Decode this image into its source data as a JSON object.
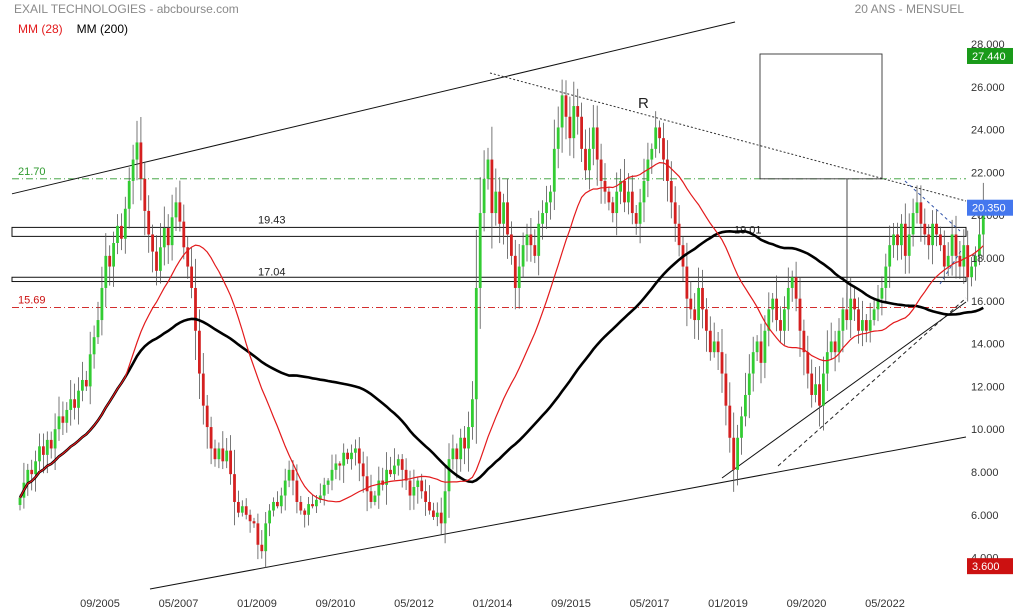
{
  "header": {
    "title": "EXAIL TECHNOLOGIES - abcbourse.com",
    "period": "20 ANS - MENSUEL"
  },
  "legend": [
    {
      "label": "MM (28)",
      "color": "#e31a1c"
    },
    {
      "label": "MM (200)",
      "color": "#000000"
    }
  ],
  "colors": {
    "up": "#33cc33",
    "down": "#d42020",
    "ma28": "#e31a1c",
    "ma200": "#000000",
    "last_badge": "#1a9a1a",
    "low_badge": "#cc1111",
    "green_level": "#2e9a2e",
    "red_level": "#cc1111"
  },
  "chart_data": {
    "type": "candlestick",
    "title": "EXAIL TECHNOLOGIES - abcbourse.com",
    "subtitle": "20 ANS - MENSUEL",
    "ylim": [
      3.0,
      28.6
    ],
    "y_ticks": [
      "28.000",
      "26.000",
      "24.000",
      "22.000",
      "20.000",
      "18.000",
      "16.000",
      "14.000",
      "12.000",
      "10.000",
      "8.000",
      "6.000",
      "4.000"
    ],
    "x_ticks": [
      "09/2005",
      "05/2007",
      "01/2009",
      "09/2010",
      "05/2012",
      "01/2014",
      "09/2015",
      "05/2017",
      "01/2019",
      "09/2020",
      "05/2022"
    ],
    "last_price": "20.350",
    "badges": [
      {
        "value": "27.440",
        "price": 27.44,
        "color": "green"
      },
      {
        "value": "3.600",
        "price": 3.6,
        "color": "red"
      }
    ],
    "levels": [
      {
        "value": 21.7,
        "label": "21.70",
        "style": "dashdot",
        "color": "green"
      },
      {
        "value": 15.69,
        "label": "15.69",
        "style": "dashdot",
        "color": "red"
      }
    ],
    "zones": [
      {
        "label": "19.43",
        "low": 19.01,
        "high": 19.43
      },
      {
        "label": "19.01",
        "low": 19.01,
        "high": 19.43
      },
      {
        "label": "17.04",
        "low": 16.9,
        "high": 17.1
      }
    ],
    "annotations": [
      "R"
    ],
    "closes": [
      6.8,
      7.5,
      8.1,
      7.9,
      8.5,
      9.2,
      8.8,
      9.5,
      9.1,
      10.0,
      10.6,
      10.3,
      10.9,
      11.4,
      11.0,
      11.8,
      12.3,
      12.0,
      13.5,
      14.3,
      15.1,
      16.6,
      18.1,
      17.6,
      18.7,
      19.5,
      18.9,
      20.3,
      21.6,
      22.6,
      23.4,
      21.7,
      20.2,
      19.1,
      18.3,
      17.4,
      18.5,
      19.4,
      18.6,
      19.9,
      20.6,
      19.7,
      18.5,
      17.6,
      16.6,
      14.6,
      12.6,
      11.1,
      10.1,
      9.1,
      8.6,
      9.1,
      8.5,
      9.0,
      7.9,
      6.6,
      6.1,
      6.4,
      6.0,
      5.7,
      5.6,
      4.6,
      4.3,
      5.6,
      6.2,
      6.6,
      6.4,
      6.9,
      7.6,
      8.1,
      7.6,
      6.6,
      6.2,
      6.0,
      6.5,
      6.4,
      6.7,
      6.9,
      7.4,
      7.6,
      8.1,
      8.4,
      8.3,
      8.9,
      8.6,
      8.9,
      9.1,
      8.4,
      7.8,
      7.1,
      6.6,
      6.9,
      7.6,
      7.4,
      8.1,
      7.9,
      8.3,
      8.6,
      8.1,
      7.6,
      6.9,
      7.3,
      7.6,
      7.1,
      6.6,
      6.2,
      5.9,
      6.1,
      5.6,
      7.1,
      8.6,
      9.1,
      8.6,
      9.6,
      9.1,
      10.1,
      11.4,
      16.6,
      20.1,
      21.7,
      22.6,
      20.1,
      21.1,
      19.6,
      20.6,
      19.1,
      18.1,
      16.6,
      17.6,
      18.6,
      19.1,
      18.6,
      18.1,
      19.6,
      20.1,
      20.6,
      21.1,
      23.1,
      24.1,
      25.6,
      24.6,
      23.6,
      25.1,
      24.6,
      23.1,
      22.1,
      23.1,
      24.1,
      22.6,
      21.6,
      21.1,
      20.6,
      20.1,
      21.1,
      21.6,
      20.6,
      21.1,
      20.1,
      19.6,
      20.6,
      21.6,
      22.6,
      23.1,
      24.1,
      23.6,
      22.6,
      21.6,
      20.6,
      19.6,
      18.6,
      17.6,
      16.1,
      15.6,
      15.1,
      16.6,
      15.6,
      14.6,
      13.6,
      14.1,
      13.6,
      12.6,
      11.1,
      9.6,
      8.1,
      9.6,
      10.6,
      11.6,
      12.6,
      13.6,
      14.1,
      13.1,
      14.6,
      15.6,
      16.1,
      15.1,
      14.6,
      15.6,
      16.6,
      17.1,
      16.1,
      14.6,
      13.6,
      12.6,
      11.6,
      12.1,
      11.1,
      12.6,
      13.6,
      14.1,
      13.6,
      14.6,
      15.6,
      15.1,
      16.1,
      15.6,
      14.6,
      15.1,
      14.6,
      15.1,
      15.6,
      16.1,
      16.6,
      17.6,
      18.6,
      19.1,
      18.6,
      19.6,
      18.1,
      19.1,
      20.1,
      20.6,
      19.6,
      19.1,
      18.6,
      19.6,
      19.1,
      18.6,
      17.6,
      18.1,
      19.1,
      18.1,
      17.6,
      18.6,
      17.1,
      17.6,
      18.1,
      19.1,
      20.35
    ]
  }
}
